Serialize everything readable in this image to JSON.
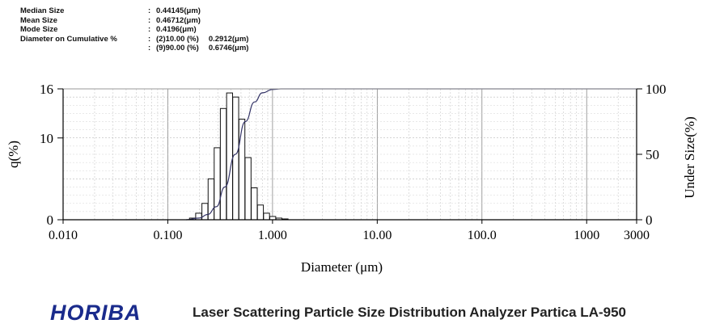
{
  "stats": {
    "median_label": "Median Size",
    "median_value": "0.44145(μm)",
    "mean_label": "Mean Size",
    "mean_value": "0.46712(μm)",
    "mode_label": "Mode Size",
    "mode_value": "0.4196(μm)",
    "cumulative_label": "Diameter on Cumulative %",
    "cum1_pct": "(2)10.00 (%)",
    "cum1_val": "0.2912(μm)",
    "cum2_pct": "(9)90.00 (%)",
    "cum2_val": "0.6746(μm)"
  },
  "footer": {
    "brand": "HORIBA",
    "caption": "Laser Scattering Particle Size Distribution Analyzer Partica LA-950"
  },
  "chart_data": {
    "type": "bar",
    "xlabel": "Diameter (μm)",
    "ylabel_left": "q(%)",
    "ylabel_right": "Under Size(%)",
    "x_scale": "log",
    "xlim": [
      0.01,
      3000
    ],
    "ylim_left": [
      0,
      16
    ],
    "ylim_right": [
      0,
      100
    ],
    "x_ticks": [
      {
        "value": 0.01,
        "label": "0.010"
      },
      {
        "value": 0.1,
        "label": "0.100"
      },
      {
        "value": 1,
        "label": "1.000"
      },
      {
        "value": 10,
        "label": "10.00"
      },
      {
        "value": 100,
        "label": "100.0"
      },
      {
        "value": 1000,
        "label": "1000"
      },
      {
        "value": 3000,
        "label": "3000"
      }
    ],
    "y_ticks_left": [
      {
        "value": 0,
        "label": "0"
      },
      {
        "value": 10,
        "label": "10"
      },
      {
        "value": 16,
        "label": "16"
      }
    ],
    "y_ticks_right": [
      {
        "value": 0,
        "label": "0"
      },
      {
        "value": 50,
        "label": "50"
      },
      {
        "value": 100,
        "label": "100"
      }
    ],
    "grid": true,
    "histogram": {
      "name": "q(%)",
      "bins": [
        {
          "x": 0.172,
          "q": 0.2
        },
        {
          "x": 0.197,
          "q": 0.8
        },
        {
          "x": 0.226,
          "q": 2.0
        },
        {
          "x": 0.259,
          "q": 5.0
        },
        {
          "x": 0.296,
          "q": 8.8
        },
        {
          "x": 0.339,
          "q": 13.6
        },
        {
          "x": 0.389,
          "q": 15.5
        },
        {
          "x": 0.445,
          "q": 15.0
        },
        {
          "x": 0.51,
          "q": 12.3
        },
        {
          "x": 0.584,
          "q": 7.6
        },
        {
          "x": 0.669,
          "q": 3.9
        },
        {
          "x": 0.766,
          "q": 1.8
        },
        {
          "x": 0.877,
          "q": 0.8
        },
        {
          "x": 1.005,
          "q": 0.4
        },
        {
          "x": 1.151,
          "q": 0.2
        },
        {
          "x": 1.318,
          "q": 0.1
        }
      ]
    },
    "cumulative": {
      "name": "Under Size(%)",
      "points": [
        {
          "x": 0.15,
          "y": 0
        },
        {
          "x": 0.2,
          "y": 1.3
        },
        {
          "x": 0.24,
          "y": 4
        },
        {
          "x": 0.2912,
          "y": 10
        },
        {
          "x": 0.35,
          "y": 25
        },
        {
          "x": 0.44145,
          "y": 50
        },
        {
          "x": 0.55,
          "y": 75
        },
        {
          "x": 0.6746,
          "y": 90
        },
        {
          "x": 0.8,
          "y": 97
        },
        {
          "x": 1.0,
          "y": 99.5
        },
        {
          "x": 1.2,
          "y": 100
        },
        {
          "x": 3000,
          "y": 100
        }
      ]
    }
  }
}
